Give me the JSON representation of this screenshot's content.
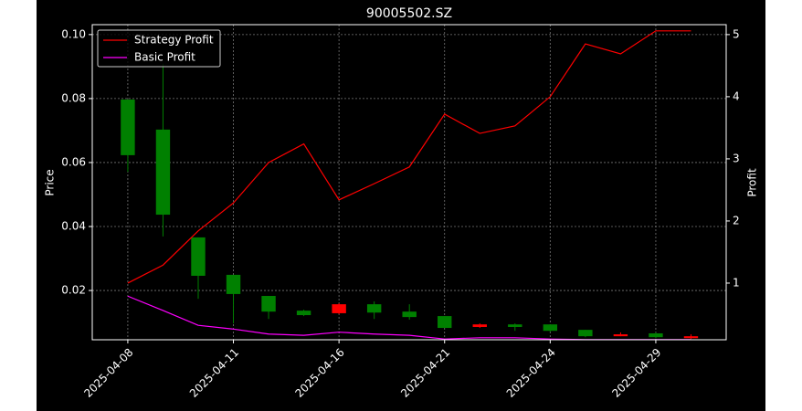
{
  "chart_data": {
    "type": "candlestick",
    "title": "90005502.SZ",
    "y_label": "Price",
    "y2_label": "Profit",
    "categories": [
      "2025-04-08",
      null,
      null,
      "2025-04-11",
      null,
      null,
      "2025-04-16",
      null,
      null,
      "2025-04-21",
      null,
      null,
      "2025-04-24",
      null,
      null,
      "2025-04-29",
      null
    ],
    "candles": {
      "open": [
        0.0797,
        0.0703,
        0.0366,
        0.0249,
        0.0183,
        0.0137,
        0.0129,
        0.0157,
        0.0134,
        0.012,
        0.0086,
        0.0094,
        0.0094,
        0.0077,
        0.0057,
        0.0066,
        0.0051
      ],
      "high": [
        0.0797,
        0.0909,
        0.0366,
        0.0249,
        0.0183,
        0.014,
        0.016,
        0.0166,
        0.0157,
        0.012,
        0.0097,
        0.0097,
        0.0094,
        0.0077,
        0.0069,
        0.0069,
        0.0063
      ],
      "low": [
        0.0571,
        0.0369,
        0.0174,
        0.0097,
        0.0111,
        0.012,
        0.0126,
        0.0111,
        0.0109,
        0.0083,
        0.0083,
        0.0074,
        0.0071,
        0.0054,
        0.0057,
        0.0051,
        0.0049
      ],
      "close": [
        0.0623,
        0.0437,
        0.0246,
        0.0189,
        0.0134,
        0.0123,
        0.0157,
        0.0131,
        0.0117,
        0.0083,
        0.0094,
        0.0086,
        0.0074,
        0.0057,
        0.0063,
        0.0054,
        0.0057
      ],
      "up_color": "#ff0000",
      "down_color": "#008000"
    },
    "series": [
      {
        "name": "Strategy Profit",
        "color": "#ff0000",
        "axis": "y2",
        "values": [
          1.0,
          1.29,
          1.84,
          2.29,
          2.94,
          3.24,
          2.34,
          2.6,
          2.87,
          3.72,
          3.41,
          3.53,
          4.0,
          4.85,
          4.69,
          5.06,
          5.06
        ]
      },
      {
        "name": "Basic Profit",
        "color": "#ff00ff",
        "axis": "y2",
        "values": [
          0.79,
          0.56,
          0.32,
          0.26,
          0.18,
          0.16,
          0.21,
          0.18,
          0.16,
          0.1,
          0.12,
          0.12,
          0.1,
          0.09,
          0.09,
          0.09,
          0.09
        ]
      }
    ],
    "ylim": [
      0.0046,
      0.1031
    ],
    "yticks": [
      0.02,
      0.04,
      0.06,
      0.08,
      {
        "value": 0.1,
        "label": "0.10"
      }
    ],
    "y2lim": [
      0.088,
      5.16
    ],
    "y2ticks": [
      1,
      2,
      3,
      4,
      5
    ],
    "grid": true,
    "legend": "upper left"
  }
}
